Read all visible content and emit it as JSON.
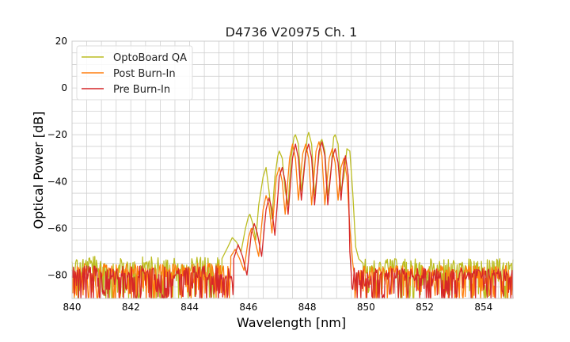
{
  "chart_data": {
    "type": "line",
    "title": "D4736 V20975 Ch. 1",
    "xlabel": "Wavelength [nm]",
    "ylabel": "Optical Power [dB]",
    "xlim": [
      840,
      855
    ],
    "ylim": [
      -90,
      20
    ],
    "xticks": [
      840,
      842,
      844,
      846,
      848,
      850,
      852,
      854
    ],
    "yticks": [
      20,
      0,
      -20,
      -40,
      -60,
      -80
    ],
    "grid": true,
    "legend_position": "top-left",
    "series": [
      {
        "name": "OptoBoard QA",
        "color": "#bcbd22",
        "noise_floor": {
          "x_range": [
            840,
            845.1
          ],
          "level": -75,
          "spread": 15
        },
        "noise_floor_right": {
          "x_range": [
            849.9,
            855
          ],
          "level": -76,
          "spread": 14
        },
        "points": [
          [
            845.1,
            -73
          ],
          [
            845.3,
            -68
          ],
          [
            845.45,
            -64
          ],
          [
            845.6,
            -66
          ],
          [
            845.75,
            -70
          ],
          [
            845.9,
            -60
          ],
          [
            846.0,
            -55
          ],
          [
            846.05,
            -54
          ],
          [
            846.15,
            -58
          ],
          [
            846.25,
            -65
          ],
          [
            846.35,
            -50
          ],
          [
            846.5,
            -38
          ],
          [
            846.6,
            -34
          ],
          [
            846.7,
            -44
          ],
          [
            846.8,
            -56
          ],
          [
            846.9,
            -38
          ],
          [
            847.0,
            -29
          ],
          [
            847.05,
            -27
          ],
          [
            847.15,
            -30
          ],
          [
            847.25,
            -44
          ],
          [
            847.35,
            -50
          ],
          [
            847.45,
            -30
          ],
          [
            847.55,
            -21
          ],
          [
            847.6,
            -20
          ],
          [
            847.7,
            -24
          ],
          [
            847.8,
            -44
          ],
          [
            847.9,
            -33
          ],
          [
            848.0,
            -21
          ],
          [
            848.05,
            -19
          ],
          [
            848.15,
            -24
          ],
          [
            848.25,
            -46
          ],
          [
            848.35,
            -35
          ],
          [
            848.45,
            -23
          ],
          [
            848.5,
            -22
          ],
          [
            848.6,
            -27
          ],
          [
            848.7,
            -46
          ],
          [
            848.8,
            -36
          ],
          [
            848.9,
            -21
          ],
          [
            848.95,
            -20
          ],
          [
            849.05,
            -24
          ],
          [
            849.15,
            -44
          ],
          [
            849.25,
            -38
          ],
          [
            849.35,
            -26
          ],
          [
            849.45,
            -27
          ],
          [
            849.55,
            -45
          ],
          [
            849.65,
            -68
          ],
          [
            849.75,
            -73
          ],
          [
            849.9,
            -75
          ]
        ]
      },
      {
        "name": "Post Burn-In",
        "color": "#ff7f0e",
        "noise_floor": {
          "x_range": [
            840,
            845.4
          ],
          "level": -78,
          "spread": 12
        },
        "noise_floor_right": {
          "x_range": [
            849.6,
            855
          ],
          "level": -79,
          "spread": 11
        },
        "points": [
          [
            845.4,
            -72
          ],
          [
            845.55,
            -69
          ],
          [
            845.7,
            -73
          ],
          [
            845.85,
            -78
          ],
          [
            846.0,
            -64
          ],
          [
            846.1,
            -60
          ],
          [
            846.2,
            -64
          ],
          [
            846.35,
            -72
          ],
          [
            846.5,
            -52
          ],
          [
            846.6,
            -46
          ],
          [
            846.7,
            -50
          ],
          [
            846.8,
            -62
          ],
          [
            846.95,
            -38
          ],
          [
            847.05,
            -34
          ],
          [
            847.15,
            -40
          ],
          [
            847.25,
            -54
          ],
          [
            847.4,
            -30
          ],
          [
            847.5,
            -24
          ],
          [
            847.6,
            -30
          ],
          [
            847.7,
            -48
          ],
          [
            847.85,
            -28
          ],
          [
            847.95,
            -24
          ],
          [
            848.05,
            -30
          ],
          [
            848.15,
            -50
          ],
          [
            848.3,
            -27
          ],
          [
            848.4,
            -23
          ],
          [
            848.5,
            -29
          ],
          [
            848.6,
            -50
          ],
          [
            848.75,
            -30
          ],
          [
            848.85,
            -26
          ],
          [
            848.95,
            -32
          ],
          [
            849.05,
            -48
          ],
          [
            849.15,
            -34
          ],
          [
            849.25,
            -30
          ],
          [
            849.35,
            -38
          ],
          [
            849.45,
            -60
          ],
          [
            849.55,
            -75
          ],
          [
            849.6,
            -80
          ]
        ]
      },
      {
        "name": "Pre Burn-In",
        "color": "#d62728",
        "noise_floor": {
          "x_range": [
            840,
            845.5
          ],
          "level": -79,
          "spread": 12
        },
        "noise_floor_right": {
          "x_range": [
            849.5,
            855
          ],
          "level": -80,
          "spread": 11
        },
        "points": [
          [
            845.5,
            -73
          ],
          [
            845.65,
            -67
          ],
          [
            845.8,
            -72
          ],
          [
            845.95,
            -80
          ],
          [
            846.1,
            -62
          ],
          [
            846.2,
            -58
          ],
          [
            846.3,
            -62
          ],
          [
            846.45,
            -72
          ],
          [
            846.6,
            -52
          ],
          [
            846.7,
            -47
          ],
          [
            846.8,
            -52
          ],
          [
            846.9,
            -63
          ],
          [
            847.05,
            -38
          ],
          [
            847.15,
            -34
          ],
          [
            847.25,
            -40
          ],
          [
            847.35,
            -54
          ],
          [
            847.5,
            -30
          ],
          [
            847.6,
            -24
          ],
          [
            847.7,
            -30
          ],
          [
            847.8,
            -48
          ],
          [
            847.95,
            -28
          ],
          [
            848.05,
            -24
          ],
          [
            848.15,
            -30
          ],
          [
            848.25,
            -50
          ],
          [
            848.4,
            -27
          ],
          [
            848.5,
            -23
          ],
          [
            848.6,
            -29
          ],
          [
            848.7,
            -50
          ],
          [
            848.85,
            -30
          ],
          [
            848.95,
            -26
          ],
          [
            849.05,
            -32
          ],
          [
            849.15,
            -48
          ],
          [
            849.25,
            -32
          ],
          [
            849.3,
            -29
          ],
          [
            849.4,
            -38
          ],
          [
            849.45,
            -70
          ],
          [
            849.5,
            -80
          ]
        ]
      }
    ]
  }
}
